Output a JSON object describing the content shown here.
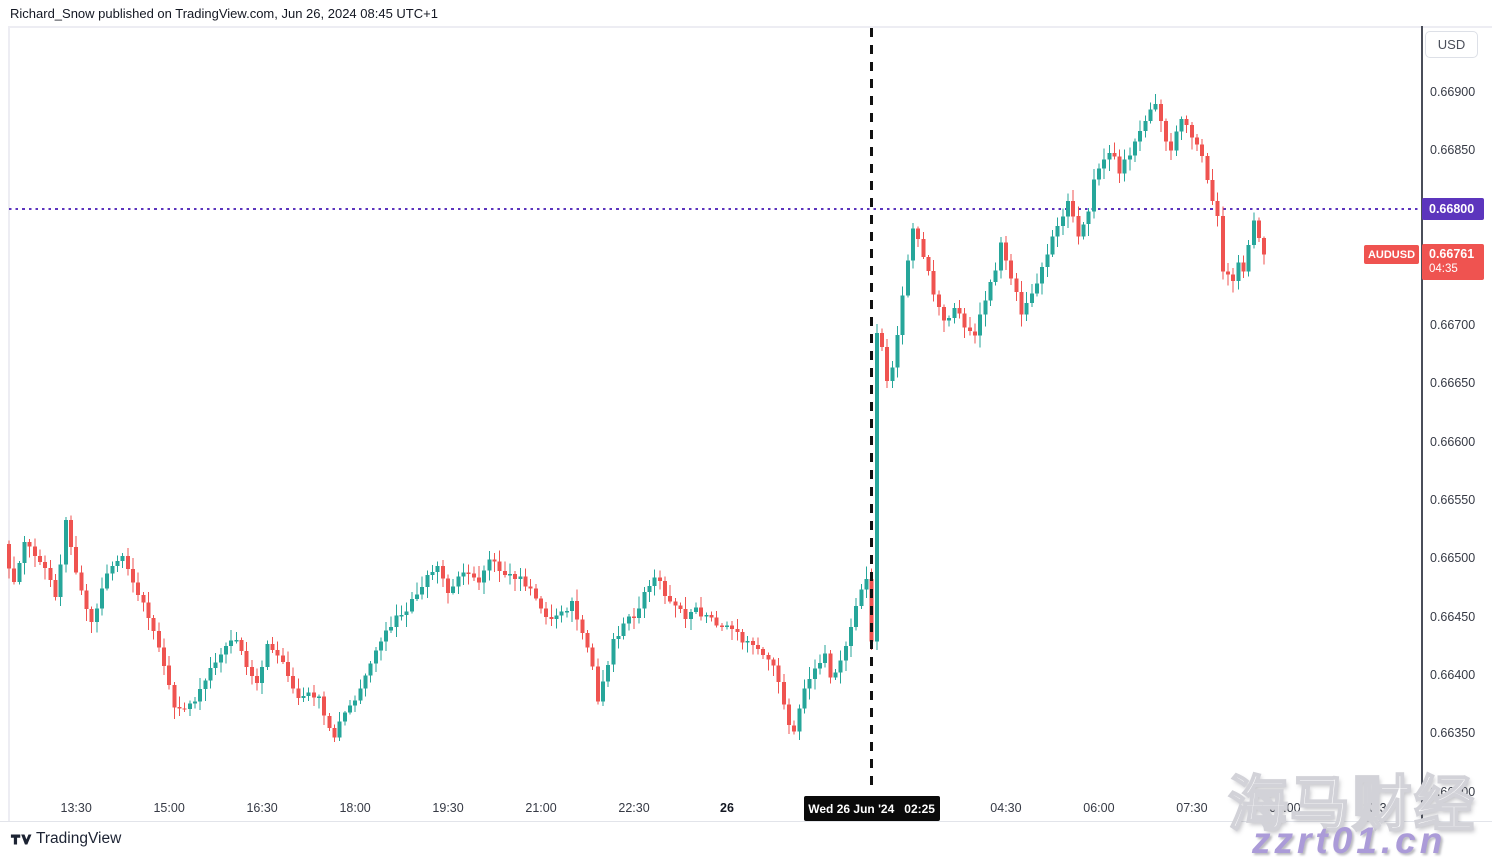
{
  "header": {
    "title": "Richard_Snow published on TradingView.com, Jun 26, 2024 08:45 UTC+1"
  },
  "price_scale": {
    "currency_button": "USD",
    "labels": [
      {
        "text": "0.66900",
        "price": 0.669
      },
      {
        "text": "0.66850",
        "price": 0.6685
      },
      {
        "text": "0.66700",
        "price": 0.667
      },
      {
        "text": "0.66650",
        "price": 0.6665
      },
      {
        "text": "0.66600",
        "price": 0.666
      },
      {
        "text": "0.66550",
        "price": 0.6655
      },
      {
        "text": "0.66500",
        "price": 0.665
      },
      {
        "text": "0.66450",
        "price": 0.6645
      },
      {
        "text": "0.66400",
        "price": 0.664
      },
      {
        "text": "0.66350",
        "price": 0.6635
      },
      {
        "text": "0.66300",
        "price": 0.663
      }
    ]
  },
  "level_line": {
    "label": "0.66800",
    "price": 0.668,
    "color": "#5c35bd"
  },
  "last_quote": {
    "symbol": "AUDUSD",
    "price_label": "0.66761",
    "price": 0.66761,
    "countdown": "04:35",
    "color": "#ef5350"
  },
  "time_scale": {
    "labels": [
      {
        "text": "13:30",
        "i": 13
      },
      {
        "text": "15:00",
        "i": 31
      },
      {
        "text": "16:30",
        "i": 49
      },
      {
        "text": "18:00",
        "i": 67
      },
      {
        "text": "19:30",
        "i": 85
      },
      {
        "text": "21:00",
        "i": 103
      },
      {
        "text": "22:30",
        "i": 121
      },
      {
        "text": "26",
        "i": 139,
        "bold": true
      },
      {
        "text": "04:30",
        "i": 193
      },
      {
        "text": "06:00",
        "i": 211
      },
      {
        "text": "07:30",
        "i": 229
      },
      {
        "text": "09:00",
        "i": 247
      },
      {
        "text": "10:30",
        "i": 265
      }
    ],
    "marker": {
      "date": "Wed 26 Jun '24",
      "time": "02:25",
      "i": 167
    }
  },
  "footer": {
    "brand": "TradingView"
  },
  "watermark": {
    "line1": "海马财经",
    "line2": "zzrt01.cn",
    "line2_color": "#ab9bd8"
  },
  "chart_data": {
    "type": "candlestick",
    "symbol": "AUDUSD",
    "interval": "5m",
    "colors": {
      "up": "#26a69a",
      "down": "#ef5350"
    },
    "y_axis": {
      "visible_min": 0.663,
      "visible_max": 0.66925
    },
    "x_axis": {
      "start_time": "12:25",
      "end_time": "08:40",
      "labels_every": "1h30m"
    },
    "last_close": 0.66761,
    "price_path": [
      [
        0,
        0.6651
      ],
      [
        2,
        0.6648
      ],
      [
        4,
        0.66515
      ],
      [
        6,
        0.66505
      ],
      [
        8,
        0.66492
      ],
      [
        10,
        0.66465
      ],
      [
        12,
        0.6653
      ],
      [
        13,
        0.66508
      ],
      [
        15,
        0.6647
      ],
      [
        17,
        0.66445
      ],
      [
        20,
        0.66487
      ],
      [
        23,
        0.66505
      ],
      [
        25,
        0.6648
      ],
      [
        27,
        0.66465
      ],
      [
        29,
        0.66435
      ],
      [
        31,
        0.6641
      ],
      [
        33,
        0.66375
      ],
      [
        35,
        0.66368
      ],
      [
        37,
        0.66378
      ],
      [
        39,
        0.66395
      ],
      [
        42,
        0.6642
      ],
      [
        45,
        0.66432
      ],
      [
        47,
        0.6641
      ],
      [
        49,
        0.66395
      ],
      [
        51,
        0.66425
      ],
      [
        53,
        0.66418
      ],
      [
        55,
        0.664
      ],
      [
        57,
        0.66382
      ],
      [
        59,
        0.66388
      ],
      [
        61,
        0.6638
      ],
      [
        63,
        0.66358
      ],
      [
        64,
        0.6635
      ],
      [
        66,
        0.6637
      ],
      [
        68,
        0.6638
      ],
      [
        70,
        0.664
      ],
      [
        72,
        0.66425
      ],
      [
        74,
        0.66438
      ],
      [
        76,
        0.6645
      ],
      [
        78,
        0.66458
      ],
      [
        80,
        0.6647
      ],
      [
        82,
        0.66488
      ],
      [
        84,
        0.66495
      ],
      [
        86,
        0.66472
      ],
      [
        88,
        0.66482
      ],
      [
        90,
        0.6649
      ],
      [
        92,
        0.66478
      ],
      [
        94,
        0.66498
      ],
      [
        96,
        0.66492
      ],
      [
        98,
        0.66487
      ],
      [
        100,
        0.66482
      ],
      [
        102,
        0.66477
      ],
      [
        104,
        0.66455
      ],
      [
        106,
        0.66448
      ],
      [
        108,
        0.66452
      ],
      [
        110,
        0.66463
      ],
      [
        112,
        0.6644
      ],
      [
        114,
        0.66408
      ],
      [
        115,
        0.66378
      ],
      [
        116,
        0.66392
      ],
      [
        118,
        0.66428
      ],
      [
        120,
        0.66443
      ],
      [
        122,
        0.66452
      ],
      [
        124,
        0.6647
      ],
      [
        126,
        0.66486
      ],
      [
        128,
        0.6647
      ],
      [
        130,
        0.66458
      ],
      [
        132,
        0.66452
      ],
      [
        134,
        0.66456
      ],
      [
        136,
        0.6645
      ],
      [
        138,
        0.66445
      ],
      [
        140,
        0.66441
      ],
      [
        142,
        0.66435
      ],
      [
        144,
        0.66428
      ],
      [
        146,
        0.6642
      ],
      [
        148,
        0.66414
      ],
      [
        150,
        0.66398
      ],
      [
        151,
        0.66378
      ],
      [
        152,
        0.66356
      ],
      [
        153,
        0.66352
      ],
      [
        155,
        0.66386
      ],
      [
        157,
        0.66408
      ],
      [
        159,
        0.66416
      ],
      [
        160,
        0.66398
      ],
      [
        162,
        0.66413
      ],
      [
        164,
        0.66442
      ],
      [
        165,
        0.66458
      ],
      [
        166,
        0.66472
      ],
      [
        167,
        0.66483
      ],
      [
        168,
        0.66428
      ],
      [
        169,
        0.66697
      ],
      [
        170,
        0.6668
      ],
      [
        171,
        0.6665
      ],
      [
        172,
        0.66662
      ],
      [
        173,
        0.66692
      ],
      [
        175,
        0.66758
      ],
      [
        176,
        0.66784
      ],
      [
        177,
        0.66771
      ],
      [
        178,
        0.6676
      ],
      [
        180,
        0.66727
      ],
      [
        182,
        0.66702
      ],
      [
        184,
        0.66718
      ],
      [
        186,
        0.66697
      ],
      [
        188,
        0.66694
      ],
      [
        190,
        0.66724
      ],
      [
        192,
        0.6675
      ],
      [
        193,
        0.66768
      ],
      [
        195,
        0.66742
      ],
      [
        197,
        0.66712
      ],
      [
        199,
        0.66727
      ],
      [
        201,
        0.6675
      ],
      [
        203,
        0.66774
      ],
      [
        205,
        0.66795
      ],
      [
        206,
        0.66804
      ],
      [
        208,
        0.66777
      ],
      [
        210,
        0.668
      ],
      [
        211,
        0.66823
      ],
      [
        213,
        0.66842
      ],
      [
        214,
        0.6685
      ],
      [
        216,
        0.66833
      ],
      [
        218,
        0.66847
      ],
      [
        219,
        0.66857
      ],
      [
        221,
        0.66877
      ],
      [
        223,
        0.6689
      ],
      [
        225,
        0.66861
      ],
      [
        226,
        0.6685
      ],
      [
        228,
        0.66878
      ],
      [
        230,
        0.66861
      ],
      [
        232,
        0.66846
      ],
      [
        234,
        0.66806
      ],
      [
        235,
        0.66796
      ],
      [
        236,
        0.66747
      ],
      [
        238,
        0.66739
      ],
      [
        239,
        0.66753
      ],
      [
        240,
        0.66745
      ],
      [
        241,
        0.66769
      ],
      [
        242,
        0.66793
      ],
      [
        243,
        0.66776
      ],
      [
        244,
        0.66761
      ]
    ]
  }
}
